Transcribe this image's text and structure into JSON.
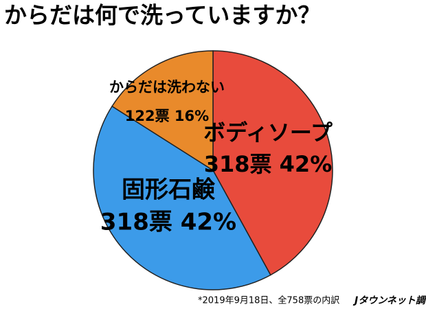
{
  "chart_data": {
    "type": "pie",
    "title": "からだは何で洗っていますか？",
    "categories": [
      "ボディソープ",
      "固形石鹸",
      "からだは洗わない"
    ],
    "values": [
      42,
      42,
      16
    ],
    "value_labels": [
      "318票 42%",
      "318票 42%",
      "122票 16%"
    ],
    "colors": [
      "#e84b3c",
      "#3c9be9",
      "#e98a2b"
    ],
    "footnote": "*2019年9月18日、全758票の内訳",
    "source": "Jタウンネット調べ"
  }
}
